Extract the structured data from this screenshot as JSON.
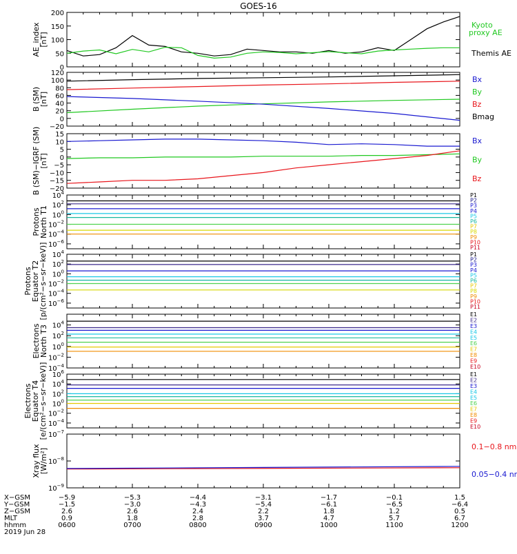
{
  "title": "GOES-16",
  "date_label": "2019 Jun 28",
  "colors": {
    "black": "#000000",
    "red": "#e8141a",
    "green": "#1fc81f",
    "blue": "#1818d0",
    "cyan": "#19c8e6",
    "teal": "#17b8a0",
    "navy": "#1a1a8c",
    "yellow": "#d8d800",
    "orange": "#f08c00",
    "purple": "#3c2a8c",
    "darkred": "#c8001e",
    "lime": "#4fd24f",
    "gold": "#e6c800"
  },
  "chart_data": [
    {
      "type": "line",
      "panel": "ae",
      "ylabel": [
        "AE_index",
        "[nT]"
      ],
      "ylim": [
        0,
        200
      ],
      "yticks": [
        "0",
        "50",
        "100",
        "150",
        "200"
      ],
      "legend": [
        {
          "text": "Kyoto",
          "color": "green"
        },
        {
          "text": "proxy AE",
          "color": "green"
        },
        {
          "text": "Themis AE",
          "color": "black"
        }
      ],
      "x": [
        0,
        0.25,
        0.5,
        0.75,
        1.0,
        1.25,
        1.5,
        1.75,
        2.0,
        2.25,
        2.5,
        2.75,
        3.0,
        3.25,
        3.5,
        3.75,
        4.0,
        4.25,
        4.5,
        4.75,
        5.0,
        5.25,
        5.5,
        5.75,
        6.0
      ],
      "series": [
        {
          "name": "Themis AE",
          "color": "black",
          "values": [
            60,
            40,
            45,
            70,
            115,
            80,
            75,
            55,
            50,
            40,
            45,
            65,
            60,
            55,
            55,
            50,
            60,
            50,
            55,
            70,
            60,
            100,
            140,
            165,
            185
          ]
        },
        {
          "name": "Kyoto proxy AE",
          "color": "green",
          "values": [
            50,
            58,
            62,
            48,
            64,
            55,
            72,
            70,
            42,
            32,
            36,
            50,
            55,
            53,
            48,
            52,
            56,
            52,
            48,
            58,
            62,
            65,
            68,
            70,
            70
          ]
        }
      ]
    },
    {
      "type": "line",
      "panel": "b",
      "ylabel": [
        "B (SM)",
        "[nT]"
      ],
      "ylim": [
        -20,
        120
      ],
      "yticks": [
        "−20",
        "0",
        "20",
        "40",
        "60",
        "80",
        "100",
        "120"
      ],
      "legend": [
        {
          "text": "Bx",
          "color": "blue"
        },
        {
          "text": "By",
          "color": "green"
        },
        {
          "text": "Bz",
          "color": "red"
        },
        {
          "text": "Bmag",
          "color": "black"
        }
      ],
      "x": [
        0,
        1,
        2,
        3,
        4,
        5,
        6
      ],
      "series": [
        {
          "name": "Bmag",
          "color": "black",
          "values": [
            97,
            101,
            104,
            106,
            108,
            111,
            114
          ]
        },
        {
          "name": "Bz",
          "color": "red",
          "values": [
            75,
            79,
            83,
            87,
            90,
            94,
            97
          ]
        },
        {
          "name": "By",
          "color": "green",
          "values": [
            15,
            24,
            32,
            38,
            43,
            47,
            50
          ]
        },
        {
          "name": "Bx",
          "color": "blue",
          "values": [
            57,
            52,
            45,
            37,
            26,
            13,
            -5
          ]
        }
      ]
    },
    {
      "type": "line",
      "panel": "db",
      "ylabel": [
        "B (SM)−IGRF (SM)",
        "[nT]"
      ],
      "ylim": [
        -20,
        15
      ],
      "yticks": [
        "−20",
        "−15",
        "−10",
        "−5",
        "0",
        "5",
        "10",
        "15"
      ],
      "legend": [
        {
          "text": "Bx",
          "color": "blue"
        },
        {
          "text": "By",
          "color": "green"
        },
        {
          "text": "Bz",
          "color": "red"
        }
      ],
      "x": [
        0,
        0.5,
        1,
        1.5,
        2,
        2.5,
        3,
        3.5,
        4,
        4.5,
        5,
        5.5,
        6
      ],
      "series": [
        {
          "name": "Bx",
          "color": "blue",
          "values": [
            10,
            10.5,
            11,
            11.5,
            11.5,
            11,
            10.5,
            9.5,
            8,
            8.5,
            8,
            7,
            7
          ]
        },
        {
          "name": "By",
          "color": "green",
          "values": [
            -1,
            -0.5,
            -0.5,
            0,
            0,
            0,
            0.5,
            0.5,
            0.5,
            1,
            1,
            1.5,
            2
          ]
        },
        {
          "name": "Bz",
          "color": "red",
          "values": [
            -17,
            -16,
            -15,
            -15,
            -14,
            -12,
            -10,
            -7,
            -5,
            -3,
            -1,
            1,
            4
          ]
        }
      ]
    },
    {
      "type": "line",
      "panel": "protons_t1",
      "log": true,
      "ylabel": [
        "Protons",
        "North T1"
      ],
      "ylim_exp": [
        -7,
        4
      ],
      "yticks_exp": [
        4,
        2,
        0,
        -2,
        -4,
        -6
      ],
      "legend": [
        "P1",
        "P2",
        "P3",
        "P4",
        "P5",
        "P6",
        "P7",
        "P8",
        "P9",
        "P10",
        "P11"
      ],
      "legend_colors": [
        "black",
        "navy",
        "blue",
        "blue",
        "cyan",
        "teal",
        "gold",
        "yellow",
        "orange",
        "red",
        "darkred"
      ],
      "x": [
        0,
        6
      ],
      "series": [
        {
          "name": "P1",
          "color": "black",
          "values": [
            2.8,
            2.8
          ]
        },
        {
          "name": "P2",
          "color": "purple",
          "values": [
            2.2,
            2.2
          ]
        },
        {
          "name": "P3",
          "color": "blue",
          "values": [
            1.2,
            1.2
          ]
        },
        {
          "name": "P4",
          "color": "cyan",
          "values": [
            0.2,
            0.2
          ]
        },
        {
          "name": "P5",
          "color": "teal",
          "values": [
            -0.6,
            -0.6
          ]
        },
        {
          "name": "P6",
          "color": "lime",
          "values": [
            -2.0,
            -2.0
          ]
        },
        {
          "name": "P7",
          "color": "yellow",
          "values": [
            -3.2,
            -3.2
          ]
        },
        {
          "name": "P8",
          "color": "orange",
          "values": [
            -4.0,
            -4.0
          ]
        }
      ]
    },
    {
      "type": "line",
      "panel": "protons_t2",
      "log": true,
      "ylabel": [
        "Protons",
        "Equator T2",
        "[p/(cm²−s−sr−keV)]"
      ],
      "ylim_exp": [
        -7,
        4
      ],
      "yticks_exp": [
        4,
        2,
        0,
        -2,
        -4,
        -6
      ],
      "legend": [
        "P1",
        "P2",
        "P3",
        "P4",
        "P5",
        "P6",
        "P7",
        "P8",
        "P9",
        "P10",
        "P11"
      ],
      "legend_colors": [
        "black",
        "navy",
        "blue",
        "blue",
        "cyan",
        "teal",
        "gold",
        "yellow",
        "orange",
        "red",
        "darkred"
      ],
      "x": [
        0,
        6
      ],
      "series": [
        {
          "name": "P1",
          "color": "black",
          "values": [
            2.6,
            2.6
          ]
        },
        {
          "name": "P2",
          "color": "purple",
          "values": [
            1.9,
            1.9
          ]
        },
        {
          "name": "P3",
          "color": "blue",
          "values": [
            0.6,
            0.6
          ]
        },
        {
          "name": "P4",
          "color": "cyan",
          "values": [
            -0.6,
            -0.6
          ]
        },
        {
          "name": "P5",
          "color": "teal",
          "values": [
            -1.3,
            -1.3
          ]
        },
        {
          "name": "P6",
          "color": "lime",
          "values": [
            -2.0,
            -2.0
          ]
        },
        {
          "name": "P7",
          "color": "yellow",
          "values": [
            -3.3,
            -3.3
          ]
        }
      ]
    },
    {
      "type": "line",
      "panel": "electrons_t3",
      "log": true,
      "ylabel": [
        "Electrons",
        "North T3"
      ],
      "ylim_exp": [
        -4,
        6
      ],
      "yticks_exp": [
        4,
        2,
        0,
        -2,
        -4
      ],
      "legend": [
        "E1",
        "E2",
        "E3",
        "E4",
        "E5",
        "E6",
        "E7",
        "E8",
        "E9",
        "E10"
      ],
      "legend_colors": [
        "black",
        "purple",
        "blue",
        "cyan",
        "cyan",
        "lime",
        "gold",
        "orange",
        "red",
        "darkred"
      ],
      "x": [
        0,
        6
      ],
      "series": [
        {
          "name": "E1",
          "color": "black",
          "values": [
            4.7,
            4.7
          ]
        },
        {
          "name": "E2",
          "color": "purple",
          "values": [
            3.5,
            3.5
          ]
        },
        {
          "name": "E3",
          "color": "blue",
          "values": [
            3.0,
            3.0
          ]
        },
        {
          "name": "E4",
          "color": "cyan",
          "values": [
            2.3,
            2.3
          ]
        },
        {
          "name": "E5",
          "color": "teal",
          "values": [
            1.6,
            1.6
          ]
        },
        {
          "name": "E6",
          "color": "lime",
          "values": [
            0.8,
            0.8
          ]
        },
        {
          "name": "E7",
          "color": "gold",
          "values": [
            -0.1,
            -0.1
          ]
        },
        {
          "name": "E8",
          "color": "orange",
          "values": [
            -0.9,
            -0.9
          ]
        }
      ]
    },
    {
      "type": "line",
      "panel": "electrons_t4",
      "log": true,
      "ylabel": [
        "Electrons",
        "Equator T4",
        "[e/(cm²−s−sr−keV)]"
      ],
      "ylim_exp": [
        -5,
        6
      ],
      "yticks_exp": [
        6,
        4,
        2,
        0,
        -2,
        -4
      ],
      "legend": [
        "E1",
        "E2",
        "E3",
        "E4",
        "E5",
        "E6",
        "E7",
        "E8",
        "E9",
        "E10"
      ],
      "legend_colors": [
        "black",
        "purple",
        "blue",
        "cyan",
        "cyan",
        "lime",
        "gold",
        "orange",
        "red",
        "darkred"
      ],
      "x": [
        0,
        6
      ],
      "series": [
        {
          "name": "E1",
          "color": "black",
          "values": [
            4.9,
            4.9
          ]
        },
        {
          "name": "E2",
          "color": "purple",
          "values": [
            3.8,
            3.8
          ]
        },
        {
          "name": "E3",
          "color": "blue",
          "values": [
            3.1,
            3.1
          ]
        },
        {
          "name": "E4",
          "color": "cyan",
          "values": [
            2.0,
            2.0
          ]
        },
        {
          "name": "E5",
          "color": "teal",
          "values": [
            1.4,
            1.4
          ]
        },
        {
          "name": "E6",
          "color": "lime",
          "values": [
            0.7,
            0.7
          ]
        },
        {
          "name": "E7",
          "color": "gold",
          "values": [
            0.0,
            0.0
          ]
        },
        {
          "name": "E8",
          "color": "orange",
          "values": [
            -1.0,
            -1.0
          ]
        }
      ]
    },
    {
      "type": "line",
      "panel": "xray",
      "log": true,
      "ylabel": [
        "Xray flux",
        "[W/m²]"
      ],
      "ylim_exp": [
        -9,
        -7
      ],
      "yticks_exp": [
        -7,
        -8,
        -9
      ],
      "legend": [
        {
          "text": "0.1−0.8 nm",
          "color": "red"
        },
        {
          "text": "0.05−0.4 nm",
          "color": "blue"
        }
      ],
      "x": [
        0,
        6
      ],
      "series": [
        {
          "name": "0.1−0.8 nm",
          "color": "red",
          "values": [
            -8.3,
            -8.25
          ]
        },
        {
          "name": "0.05−0.4 nm",
          "color": "blue",
          "values": [
            -8.28,
            -8.2
          ]
        }
      ]
    }
  ],
  "footer": {
    "row_labels": [
      "X−GSM",
      "Y−GSM",
      "Z−GSM",
      "MLT",
      "hhmm"
    ],
    "columns": [
      [
        "−5.9",
        "−1.5",
        "2.6",
        "0.9",
        "0600"
      ],
      [
        "−5.3",
        "−3.0",
        "2.6",
        "1.8",
        "0700"
      ],
      [
        "−4.4",
        "−4.3",
        "2.4",
        "2.8",
        "0800"
      ],
      [
        "−3.1",
        "−5.4",
        "2.2",
        "3.7",
        "0900"
      ],
      [
        "−1.7",
        "−6.1",
        "1.8",
        "4.7",
        "1000"
      ],
      [
        "−0.1",
        "−6.5",
        "1.2",
        "5.7",
        "1100"
      ],
      [
        "1.5",
        "−6.4",
        "0.5",
        "6.7",
        "1200"
      ]
    ]
  }
}
